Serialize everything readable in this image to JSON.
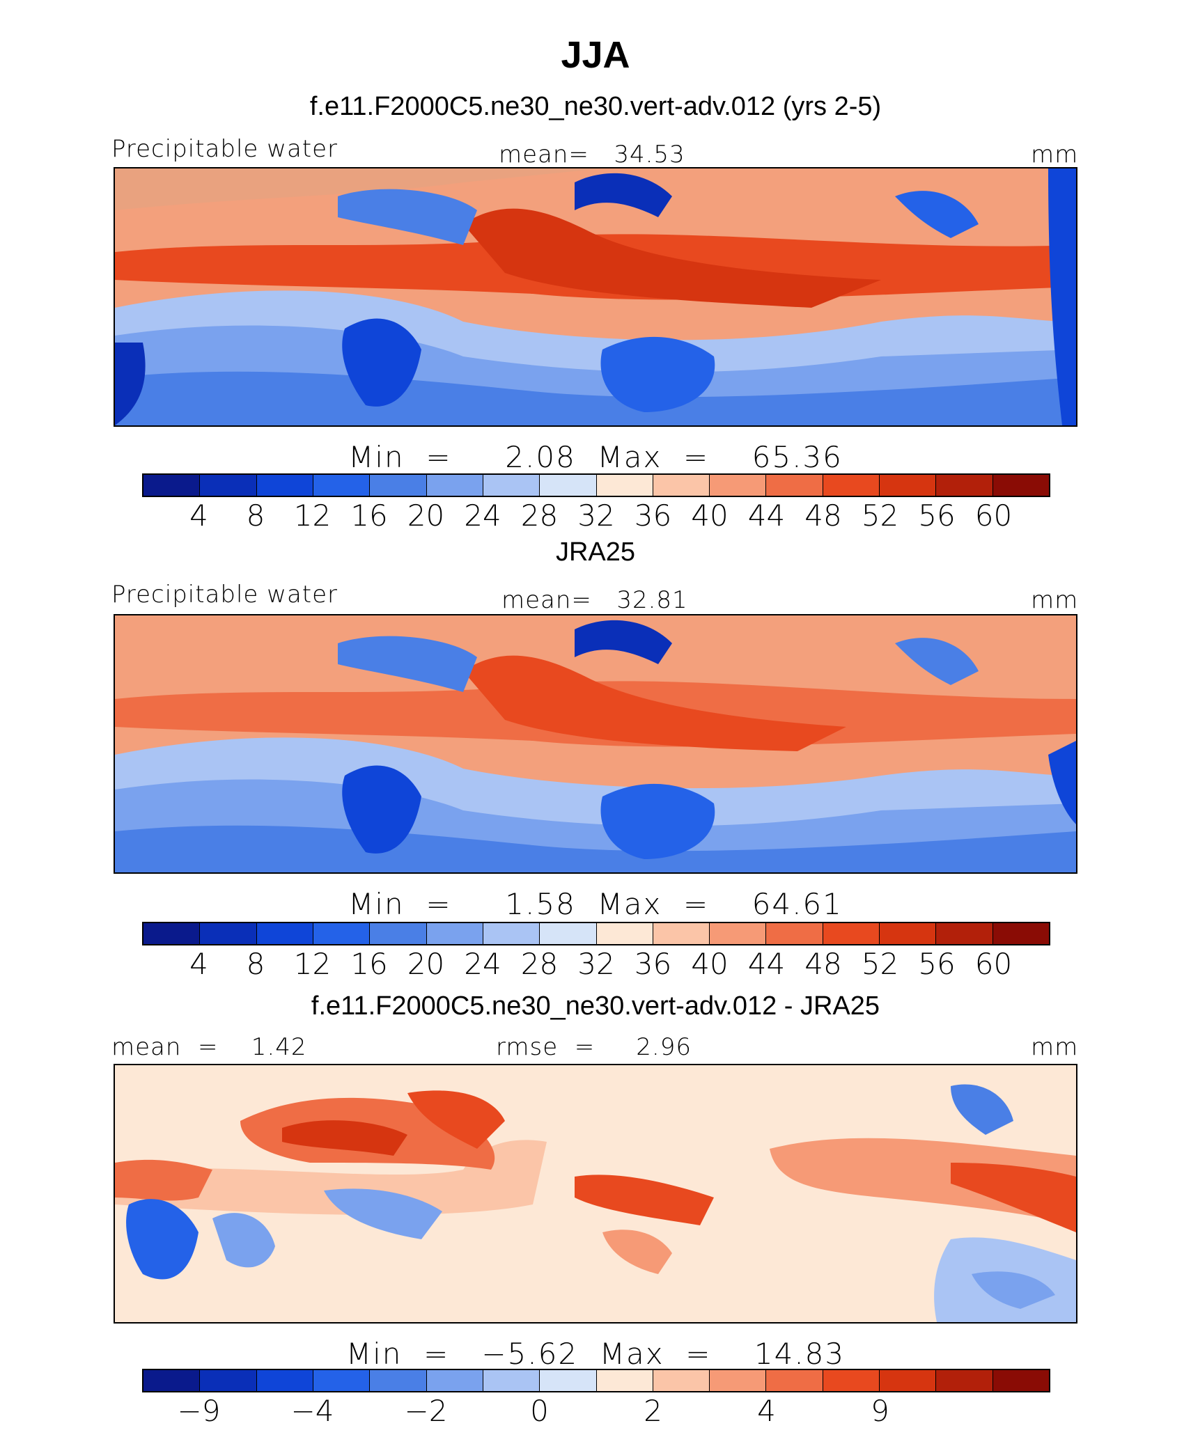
{
  "title": "JJA",
  "palette": [
    "#0a1a8c",
    "#0a2fb8",
    "#0f45d8",
    "#2462e8",
    "#4a7fe6",
    "#7aa2ee",
    "#aac4f4",
    "#d6e4f8",
    "#fde8d6",
    "#fbc5a8",
    "#f69a76",
    "#ef6d45",
    "#e8491f",
    "#d63510",
    "#b2200a",
    "#8a0c05"
  ],
  "panels": [
    {
      "title": "f.e11.F2000C5.ne30_ne30.vert-adv.012 (yrs 2-5)",
      "left_label": "Precipitable water",
      "center_label": "mean=   34.53",
      "unit": "mm",
      "min_label": "Min  =     2.08",
      "max_label": "Max  =    65.36",
      "ticks": [
        "4",
        "8",
        "12",
        "16",
        "20",
        "24",
        "28",
        "32",
        "36",
        "40",
        "44",
        "48",
        "52",
        "56",
        "60"
      ]
    },
    {
      "title": "JRA25",
      "left_label": "Precipitable water",
      "center_label": "mean=   32.81",
      "unit": "mm",
      "min_label": "Min  =     1.58",
      "max_label": "Max  =    64.61",
      "ticks": [
        "4",
        "8",
        "12",
        "16",
        "20",
        "24",
        "28",
        "32",
        "36",
        "40",
        "44",
        "48",
        "52",
        "56",
        "60"
      ]
    },
    {
      "title": "f.e11.F2000C5.ne30_ne30.vert-adv.012 - JRA25",
      "left_label": "mean  =    1.42",
      "center_label": "rmse  =     2.96",
      "unit": "mm",
      "min_label": "Min  =   −5.62",
      "max_label": "Max  =    14.83",
      "ticks": [
        "−9",
        "",
        "−4",
        "",
        "−2",
        "",
        "0",
        "",
        "2",
        "",
        "4",
        "",
        "9",
        "",
        ""
      ]
    }
  ]
}
